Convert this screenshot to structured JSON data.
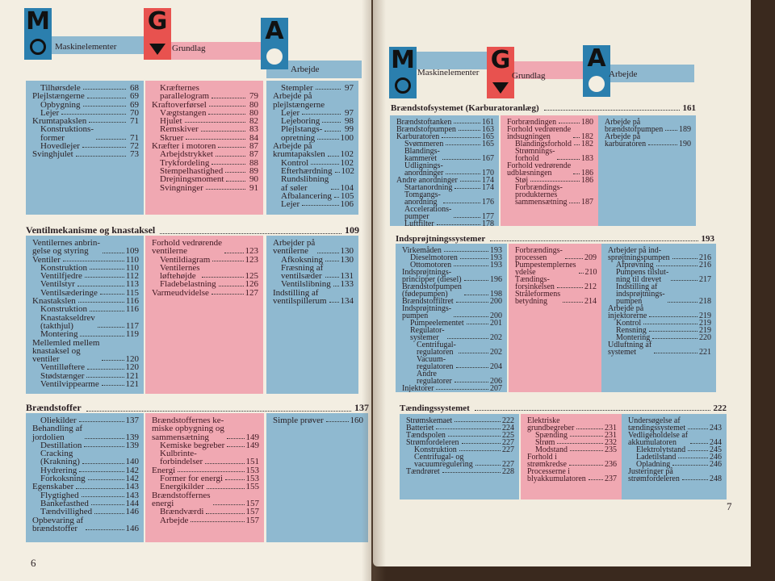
{
  "header": {
    "categories": [
      {
        "label": "Maskinelementer",
        "letter": "M",
        "icon": "piston-crankshaft-icon",
        "color": "#2b7fae"
      },
      {
        "label": "Grundlag",
        "letter": "G",
        "icon": "arrow-down-icon",
        "color": "#e8524f"
      },
      {
        "label": "Arbejde",
        "letter": "A",
        "icon": "tool-work-icon",
        "color": "#2b7fae"
      }
    ]
  },
  "colors": {
    "blue": "#8fb9d0",
    "pink": "#f0a8b2",
    "paper": "#f3eee2"
  },
  "left_page": {
    "page_number": "6",
    "sections": [
      {
        "heading": "",
        "page": "",
        "columns": [
          [
            {
              "t": "Tilhørsdele",
              "p": "68",
              "i": 1
            },
            {
              "t": "Plejlstængerne",
              "p": "69",
              "i": 0
            },
            {
              "t": "Opbygning",
              "p": "69",
              "i": 1
            },
            {
              "t": "Lejer",
              "p": "70",
              "i": 1
            },
            {
              "t": "Krumtapakslen",
              "p": "71",
              "i": 0
            },
            {
              "t": "Konstruktions-\nformer",
              "p": "71",
              "i": 1
            },
            {
              "t": "Hovedlejer",
              "p": "72",
              "i": 1
            },
            {
              "t": "Svinghjulet",
              "p": "73",
              "i": 0
            }
          ],
          [
            {
              "t": "Kræfternes\nparallelogram",
              "p": "79",
              "i": 1
            },
            {
              "t": "Kraftoverførsel",
              "p": "80",
              "i": 0
            },
            {
              "t": "Vægtstangen",
              "p": "80",
              "i": 1
            },
            {
              "t": "Hjulet",
              "p": "82",
              "i": 1
            },
            {
              "t": "Remskiver",
              "p": "83",
              "i": 1
            },
            {
              "t": "Skruer",
              "p": "84",
              "i": 1
            },
            {
              "t": "Kræfter i motoren",
              "p": "87",
              "i": 0
            },
            {
              "t": "Arbejdstrykket",
              "p": "87",
              "i": 1
            },
            {
              "t": "Trykfordeling",
              "p": "88",
              "i": 1
            },
            {
              "t": "Stempelhastighed",
              "p": "89",
              "i": 1
            },
            {
              "t": "Drejningsmoment",
              "p": "90",
              "i": 1
            },
            {
              "t": "Svingninger",
              "p": "91",
              "i": 1
            }
          ],
          [
            {
              "t": "Stempler",
              "p": "97",
              "i": 1
            },
            {
              "t": "Arbejde på\nplejlstængerne",
              "p": "",
              "i": 0
            },
            {
              "t": "Lejer",
              "p": "97",
              "i": 1
            },
            {
              "t": "Lejeboring",
              "p": "98",
              "i": 1
            },
            {
              "t": "Plejlstangs-",
              "p": "99",
              "i": 1
            },
            {
              "t": "opretning",
              "p": "100",
              "i": 1
            },
            {
              "t": "Arbejde på\nkrumtapakslen",
              "p": "102",
              "i": 0
            },
            {
              "t": "Kontrol",
              "p": "102",
              "i": 1
            },
            {
              "t": "Efterhærdning",
              "p": "102",
              "i": 1
            },
            {
              "t": "Rundslibning\naf søler",
              "p": "104",
              "i": 1
            },
            {
              "t": "Afbalancering",
              "p": "105",
              "i": 1
            },
            {
              "t": "Lejer",
              "p": "106",
              "i": 1
            }
          ]
        ]
      },
      {
        "heading": "Ventilmekanisme og knastaksel",
        "page": "109",
        "columns": [
          [
            {
              "t": "Ventilernes anbrin-\ngelse og styring",
              "p": "109",
              "i": 0
            },
            {
              "t": "Ventiler",
              "p": "110",
              "i": 0
            },
            {
              "t": "Konstruktion",
              "p": "110",
              "i": 1
            },
            {
              "t": "Ventilfjedre",
              "p": "112",
              "i": 1
            },
            {
              "t": "Ventilstyr",
              "p": "113",
              "i": 1
            },
            {
              "t": "Ventilsæderinge",
              "p": "115",
              "i": 1
            },
            {
              "t": "Knastakslen",
              "p": "116",
              "i": 0
            },
            {
              "t": "Konstruktion",
              "p": "116",
              "i": 1
            },
            {
              "t": "Knastakseldrev\n(takthjul)",
              "p": "117",
              "i": 1
            },
            {
              "t": "Montering",
              "p": "119",
              "i": 1
            },
            {
              "t": "Mellemled mellem\nknastaksel og\nventiler",
              "p": "120",
              "i": 0
            },
            {
              "t": "Ventilløftere",
              "p": "120",
              "i": 1
            },
            {
              "t": "Stødstænger",
              "p": "121",
              "i": 1
            },
            {
              "t": "Ventilvippearme",
              "p": "121",
              "i": 1
            }
          ],
          [
            {
              "t": "Forhold vedrørende\nventilerne",
              "p": "123",
              "i": 0
            },
            {
              "t": "Ventildiagram",
              "p": "123",
              "i": 1
            },
            {
              "t": "Ventilernes\nløftehøjde",
              "p": "125",
              "i": 1
            },
            {
              "t": "Fladebelastning",
              "p": "126",
              "i": 1
            },
            {
              "t": "Varmeudvidelse",
              "p": "127",
              "i": 0
            }
          ],
          [
            {
              "t": "Arbejder på\nventilerne",
              "p": "130",
              "i": 0
            },
            {
              "t": "Afkoksning",
              "p": "130",
              "i": 1
            },
            {
              "t": "Fræsning af\nventilsæder",
              "p": "131",
              "i": 1
            },
            {
              "t": "Ventilslibning",
              "p": "133",
              "i": 1
            },
            {
              "t": "Indstilling af\nventilspillerum",
              "p": "134",
              "i": 0
            }
          ]
        ]
      },
      {
        "heading": "Brændstoffer",
        "page": "137",
        "columns": [
          [
            {
              "t": "Oliekilder",
              "p": "137",
              "i": 1
            },
            {
              "t": "Behandling af\njordolien",
              "p": "139",
              "i": 0
            },
            {
              "t": "Destillation",
              "p": "139",
              "i": 1
            },
            {
              "t": "Cracking\n(Krakning)",
              "p": "140",
              "i": 1
            },
            {
              "t": "Hydrering",
              "p": "142",
              "i": 1
            },
            {
              "t": "Forkoksning",
              "p": "142",
              "i": 1
            },
            {
              "t": "Egenskaber",
              "p": "143",
              "i": 0
            },
            {
              "t": "Flygtighed",
              "p": "143",
              "i": 1
            },
            {
              "t": "Bankefasthed",
              "p": "144",
              "i": 1
            },
            {
              "t": "Tændvillighed",
              "p": "146",
              "i": 1
            },
            {
              "t": "Opbevaring af\nbrændstoffer",
              "p": "146",
              "i": 0
            }
          ],
          [
            {
              "t": "Brændstoffernes ke-\nmiske opbygning og\nsammensætning",
              "p": "149",
              "i": 0
            },
            {
              "t": "Kemiske begreber",
              "p": "149",
              "i": 1
            },
            {
              "t": "Kulbrinte-\nforbindelser",
              "p": "151",
              "i": 1
            },
            {
              "t": "Energi",
              "p": "153",
              "i": 0
            },
            {
              "t": "Former for energi",
              "p": "153",
              "i": 1
            },
            {
              "t": "Energikilder",
              "p": "155",
              "i": 1
            },
            {
              "t": "Brændstoffernes\nenergi",
              "p": "157",
              "i": 0
            },
            {
              "t": "Brændværdi",
              "p": "157",
              "i": 1
            },
            {
              "t": "Arbejde",
              "p": "157",
              "i": 1
            }
          ],
          [
            {
              "t": "Simple prøver",
              "p": "160",
              "i": 0
            }
          ]
        ]
      }
    ]
  },
  "right_page": {
    "page_number": "7",
    "sections": [
      {
        "heading": "Brændstofsystemet (Karburatoranlæg)",
        "page": "161",
        "columns": [
          [
            {
              "t": "Brændstoftanken",
              "p": "161",
              "i": 0
            },
            {
              "t": "Brændstofpumpen",
              "p": "163",
              "i": 0
            },
            {
              "t": "Karburatoren",
              "p": "165",
              "i": 0
            },
            {
              "t": "Svømmeren",
              "p": "165",
              "i": 1
            },
            {
              "t": "Blandings-\nkammeret",
              "p": "167",
              "i": 1
            },
            {
              "t": "Udlignings-\nanordninger",
              "p": "170",
              "i": 1
            },
            {
              "t": "Andre anordninger",
              "p": "174",
              "i": 0
            },
            {
              "t": "Startanordning",
              "p": "174",
              "i": 1
            },
            {
              "t": "Tomgangs-\nanordning",
              "p": "176",
              "i": 1
            },
            {
              "t": "Accelerations-\npumper",
              "p": "177",
              "i": 1
            },
            {
              "t": "Luftfilter",
              "p": "178",
              "i": 1
            }
          ],
          [
            {
              "t": "Forbrændingen",
              "p": "180",
              "i": 0
            },
            {
              "t": "Forhold vedrørende\nindsugningen",
              "p": "182",
              "i": 0
            },
            {
              "t": "Blandingsforhold",
              "p": "182",
              "i": 1
            },
            {
              "t": "Strømnings-\nforhold",
              "p": "183",
              "i": 1
            },
            {
              "t": "Forhold vedrørende\nudblæsningen",
              "p": "186",
              "i": 0
            },
            {
              "t": "Støj",
              "p": "186",
              "i": 1
            },
            {
              "t": "Forbrændings-\nprodukternes\nsammensætning",
              "p": "187",
              "i": 1
            }
          ],
          [
            {
              "t": "Arbejde på\nbrændstofpumpen",
              "p": "189",
              "i": 0
            },
            {
              "t": "Arbejde på\nkarburatoren",
              "p": "190",
              "i": 0
            }
          ]
        ]
      },
      {
        "heading": "Indsprøjtningssystemer",
        "page": "193",
        "columns": [
          [
            {
              "t": "Virkemåden",
              "p": "193",
              "i": 0
            },
            {
              "t": "Dieselmotoren",
              "p": "193",
              "i": 1
            },
            {
              "t": "Ottomotoren",
              "p": "193",
              "i": 1
            },
            {
              "t": "Indsprøjtnings-\nprincipper (diesel)",
              "p": "196",
              "i": 0
            },
            {
              "t": "Brændstofpumpen\n(fødepumpen)",
              "p": "198",
              "i": 0
            },
            {
              "t": "Brændstoffiltret",
              "p": "200",
              "i": 0
            },
            {
              "t": "Indsprøjtnings-\npumpen",
              "p": "200",
              "i": 0
            },
            {
              "t": "Pumpeelementet",
              "p": "201",
              "i": 1
            },
            {
              "t": "Regulator-\nsystemer",
              "p": "202",
              "i": 1
            },
            {
              "t": "Centrifugal-\nregulatoren",
              "p": "202",
              "i": 2
            },
            {
              "t": "Vacuum-\nregulatoren",
              "p": "204",
              "i": 2
            },
            {
              "t": "Andre\nregulatorer",
              "p": "206",
              "i": 2
            },
            {
              "t": "Injektorer",
              "p": "207",
              "i": 0
            }
          ],
          [
            {
              "t": "Forbrændings-\nprocessen",
              "p": "209",
              "i": 0
            },
            {
              "t": "Pumpestemplernes\nydelse",
              "p": "210",
              "i": 0
            },
            {
              "t": "Tændings-\nforsinkelsen",
              "p": "212",
              "i": 0
            },
            {
              "t": "Stråleformens\nbetydning",
              "p": "214",
              "i": 0
            }
          ],
          [
            {
              "t": "Arbejder på ind-\nsprøjtningspumpen",
              "p": "216",
              "i": 0
            },
            {
              "t": "Afprøvning",
              "p": "216",
              "i": 1
            },
            {
              "t": "Pumpens tilslut-\nning til drevet",
              "p": "217",
              "i": 1
            },
            {
              "t": "Indstilling af\nindsprøjtnings-\npumpen",
              "p": "218",
              "i": 1
            },
            {
              "t": "Arbejde på\ninjektorerne",
              "p": "219",
              "i": 0
            },
            {
              "t": "Kontrol",
              "p": "219",
              "i": 1
            },
            {
              "t": "Rensning",
              "p": "219",
              "i": 1
            },
            {
              "t": "Montering",
              "p": "220",
              "i": 1
            },
            {
              "t": "Udluftning af\nsystemet",
              "p": "221",
              "i": 0
            }
          ]
        ]
      },
      {
        "heading": "Tændingssystemet",
        "page": "222",
        "columns": [
          [
            {
              "t": "Strømskemaet",
              "p": "222",
              "i": 0
            },
            {
              "t": "Batteriet",
              "p": "224",
              "i": 0
            },
            {
              "t": "Tændspolen",
              "p": "225",
              "i": 0
            },
            {
              "t": "Strømfordeleren",
              "p": "227",
              "i": 0
            },
            {
              "t": "Konstruktion",
              "p": "227",
              "i": 1
            },
            {
              "t": "Centrifugal- og\nvacuumregulering",
              "p": "227",
              "i": 1
            },
            {
              "t": "Tændrøret",
              "p": "228",
              "i": 0
            }
          ],
          [
            {
              "t": "Elektriske\ngrundbegreber",
              "p": "231",
              "i": 0
            },
            {
              "t": "Spænding",
              "p": "231",
              "i": 1
            },
            {
              "t": "Strøm",
              "p": "232",
              "i": 1
            },
            {
              "t": "Modstand",
              "p": "235",
              "i": 1
            },
            {
              "t": "Forhold i\nstrømkredse",
              "p": "236",
              "i": 0
            },
            {
              "t": "Processerne i\nblyakkumulatoren",
              "p": "237",
              "i": 0
            }
          ],
          [
            {
              "t": "Undersøgelse af\ntændingssystemet",
              "p": "243",
              "i": 0
            },
            {
              "t": "Vedligeholdelse af\nakkumulatoren",
              "p": "244",
              "i": 0
            },
            {
              "t": "Elektrolytstand",
              "p": "245",
              "i": 1
            },
            {
              "t": "Ladetilstand",
              "p": "246",
              "i": 1
            },
            {
              "t": "Opladning",
              "p": "246",
              "i": 1
            },
            {
              "t": "Justeringer på\nstrømfordeleren",
              "p": "248",
              "i": 0
            }
          ]
        ]
      }
    ]
  }
}
